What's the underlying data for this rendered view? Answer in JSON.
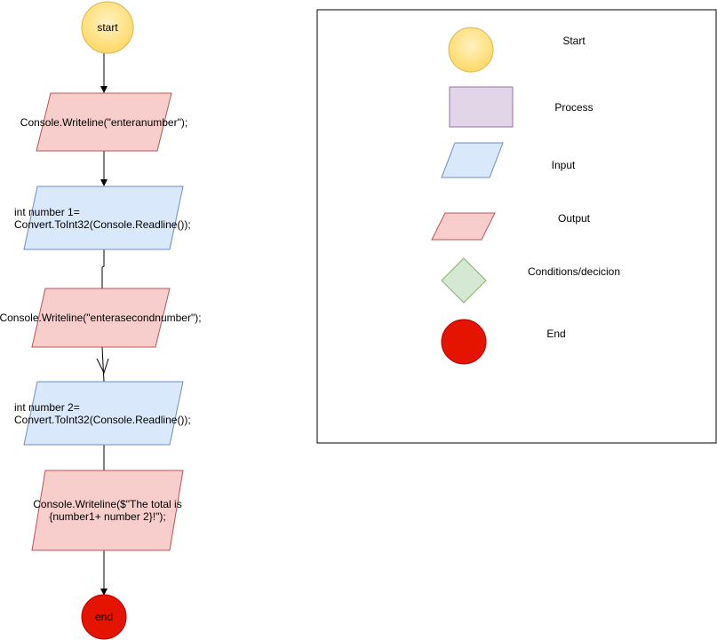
{
  "flowchart": {
    "start_label": "start",
    "output1_label": "Console.Writeline(\"enteranumber\");",
    "input1_line1": "int number 1=",
    "input1_line2": "Convert.ToInt32(Console.Readline());",
    "output2_label": "Console.Writeline(\"enterasecondnumber\");",
    "input2_line1": "int number 2=",
    "input2_line2": "Convert.ToInt32(Console.Readline());",
    "output3_line1": "Console.Writeline($\"The total is",
    "output3_line2": "{number1+ number 2}!\");",
    "end_label": "end"
  },
  "legend": {
    "start": "Start",
    "process": "Process",
    "input": "Input",
    "output": "Output",
    "decision": "Conditions/decicion",
    "end": "End"
  },
  "colors": {
    "start_fill": "#ffe08a",
    "start_stroke": "#d6b656",
    "process_fill": "#e1d5e7",
    "process_stroke": "#9673a6",
    "input_fill": "#dae8fc",
    "input_stroke": "#6c8ebf",
    "output_fill": "#f8cecc",
    "output_stroke": "#b85450",
    "decision_fill": "#d5e8d4",
    "decision_stroke": "#82b366",
    "end_fill": "#e51400",
    "end_stroke": "#b20000"
  }
}
